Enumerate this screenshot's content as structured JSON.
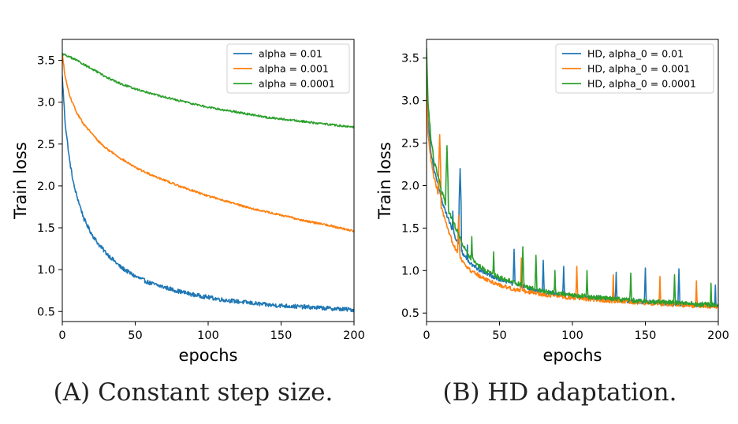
{
  "chart_data": [
    {
      "type": "line",
      "title": "",
      "xlabel": "epochs",
      "ylabel": "Train loss",
      "xlim": [
        0,
        200
      ],
      "ylim": [
        0.38,
        3.75
      ],
      "xticks": [
        "0",
        "50",
        "100",
        "150",
        "200"
      ],
      "yticks": [
        "0.5",
        "1.0",
        "1.5",
        "2.0",
        "2.5",
        "3.0",
        "3.5"
      ],
      "legend_position": "top-right",
      "grid": false,
      "series": [
        {
          "name": "alpha = 0.01",
          "color": "#1f77b4",
          "x": [
            0,
            2,
            5,
            8,
            10,
            15,
            20,
            25,
            30,
            40,
            50,
            60,
            70,
            80,
            90,
            100,
            110,
            120,
            130,
            140,
            150,
            160,
            170,
            180,
            190,
            200
          ],
          "y": [
            3.3,
            2.75,
            2.3,
            2.0,
            1.88,
            1.6,
            1.43,
            1.3,
            1.2,
            1.03,
            0.92,
            0.84,
            0.79,
            0.74,
            0.7,
            0.67,
            0.64,
            0.62,
            0.6,
            0.58,
            0.57,
            0.56,
            0.55,
            0.54,
            0.53,
            0.52
          ],
          "noise": 0.025
        },
        {
          "name": "alpha = 0.001",
          "color": "#ff7f0e",
          "x": [
            0,
            2,
            5,
            8,
            10,
            15,
            20,
            25,
            30,
            40,
            50,
            60,
            70,
            80,
            90,
            100,
            110,
            120,
            130,
            140,
            150,
            160,
            170,
            180,
            190,
            200
          ],
          "y": [
            3.57,
            3.3,
            3.08,
            2.95,
            2.87,
            2.73,
            2.63,
            2.53,
            2.45,
            2.33,
            2.22,
            2.14,
            2.07,
            2.0,
            1.94,
            1.88,
            1.83,
            1.78,
            1.73,
            1.69,
            1.65,
            1.61,
            1.57,
            1.54,
            1.5,
            1.46
          ],
          "noise": 0.012
        },
        {
          "name": "alpha = 0.0001",
          "color": "#2ca02c",
          "x": [
            0,
            10,
            20,
            30,
            40,
            50,
            60,
            70,
            80,
            90,
            100,
            110,
            120,
            130,
            140,
            150,
            160,
            170,
            180,
            190,
            200
          ],
          "y": [
            3.58,
            3.5,
            3.4,
            3.3,
            3.22,
            3.16,
            3.11,
            3.06,
            3.02,
            2.98,
            2.94,
            2.91,
            2.88,
            2.85,
            2.82,
            2.8,
            2.78,
            2.76,
            2.74,
            2.72,
            2.7
          ],
          "noise": 0.012
        }
      ],
      "caption": "(A) Constant step size."
    },
    {
      "type": "line",
      "title": "",
      "xlabel": "epochs",
      "ylabel": "Train loss",
      "xlim": [
        0,
        200
      ],
      "ylim": [
        0.4,
        3.72
      ],
      "xticks": [
        "0",
        "50",
        "100",
        "150",
        "200"
      ],
      "yticks": [
        "0.5",
        "1.0",
        "1.5",
        "2.0",
        "2.5",
        "3.0",
        "3.5"
      ],
      "legend_position": "top-right",
      "grid": false,
      "series": [
        {
          "name": "HD, alpha_0 = 0.01",
          "color": "#1f77b4",
          "x": [
            0,
            1,
            3,
            5,
            8,
            10,
            15,
            20,
            25,
            30,
            40,
            50,
            60,
            70,
            80,
            100,
            120,
            140,
            160,
            180,
            200
          ],
          "y": [
            3.4,
            2.8,
            2.4,
            2.2,
            2.0,
            1.85,
            1.6,
            1.38,
            1.2,
            1.08,
            0.97,
            0.9,
            0.84,
            0.79,
            0.75,
            0.7,
            0.67,
            0.64,
            0.62,
            0.6,
            0.59
          ],
          "noise": 0.025,
          "spikes": [
            [
              23,
              2.2
            ],
            [
              18,
              1.7
            ],
            [
              28,
              1.3
            ],
            [
              60,
              1.25
            ],
            [
              80,
              1.12
            ],
            [
              94,
              1.05
            ],
            [
              130,
              0.98
            ],
            [
              150,
              1.03
            ],
            [
              173,
              1.02
            ],
            [
              198,
              0.83
            ]
          ]
        },
        {
          "name": "HD, alpha_0 = 0.001",
          "color": "#ff7f0e",
          "x": [
            0,
            1,
            3,
            5,
            8,
            10,
            15,
            20,
            25,
            30,
            40,
            50,
            60,
            70,
            80,
            100,
            120,
            140,
            160,
            180,
            200
          ],
          "y": [
            3.5,
            2.6,
            2.3,
            2.1,
            1.9,
            1.75,
            1.45,
            1.25,
            1.1,
            1.0,
            0.9,
            0.83,
            0.78,
            0.75,
            0.72,
            0.68,
            0.65,
            0.63,
            0.61,
            0.59,
            0.57
          ],
          "noise": 0.025,
          "spikes": [
            [
              9,
              2.6
            ],
            [
              22,
              1.65
            ],
            [
              65,
              1.15
            ],
            [
              103,
              1.05
            ],
            [
              128,
              0.95
            ],
            [
              160,
              0.93
            ],
            [
              185,
              0.88
            ]
          ]
        },
        {
          "name": "HD, alpha_0 = 0.0001",
          "color": "#2ca02c",
          "x": [
            0,
            1,
            3,
            5,
            8,
            10,
            15,
            20,
            25,
            30,
            40,
            50,
            60,
            70,
            80,
            100,
            120,
            140,
            160,
            180,
            200
          ],
          "y": [
            3.6,
            3.0,
            2.55,
            2.3,
            2.1,
            1.95,
            1.7,
            1.5,
            1.3,
            1.15,
            1.0,
            0.92,
            0.86,
            0.8,
            0.76,
            0.71,
            0.68,
            0.65,
            0.63,
            0.61,
            0.59
          ],
          "noise": 0.028,
          "spikes": [
            [
              14,
              2.47
            ],
            [
              31,
              1.4
            ],
            [
              46,
              1.22
            ],
            [
              66,
              1.28
            ],
            [
              75,
              1.18
            ],
            [
              88,
              1.0
            ],
            [
              110,
              1.0
            ],
            [
              140,
              0.97
            ],
            [
              170,
              0.95
            ],
            [
              195,
              0.85
            ]
          ]
        }
      ],
      "caption": "(B) HD adaptation."
    }
  ]
}
